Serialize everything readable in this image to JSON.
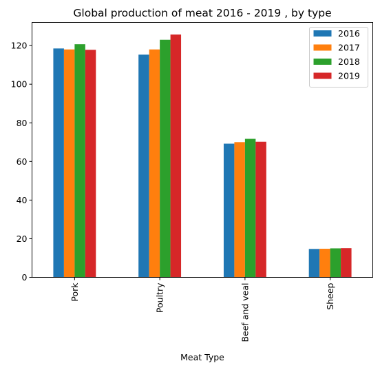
{
  "chart_data": {
    "type": "bar",
    "title": "Global production of meat 2016 - 2019 , by type",
    "xlabel": "Meat Type",
    "ylabel": "",
    "categories": [
      "Pork",
      "Poultry",
      "Beef and veal",
      "Sheep"
    ],
    "series": [
      {
        "name": "2016",
        "color": "#1f77b4",
        "values": [
          118.5,
          115.3,
          69.2,
          14.7
        ]
      },
      {
        "name": "2017",
        "color": "#ff7f0e",
        "values": [
          118.0,
          118.0,
          70.0,
          14.8
        ]
      },
      {
        "name": "2018",
        "color": "#2ca02c",
        "values": [
          120.7,
          123.0,
          71.7,
          15.0
        ]
      },
      {
        "name": "2019",
        "color": "#d62728",
        "values": [
          117.8,
          125.7,
          70.2,
          15.1
        ]
      }
    ],
    "ylim": [
      0,
      132
    ],
    "yticks": [
      0,
      20,
      40,
      60,
      80,
      100,
      120
    ],
    "grid": false,
    "legend": "top-right"
  }
}
